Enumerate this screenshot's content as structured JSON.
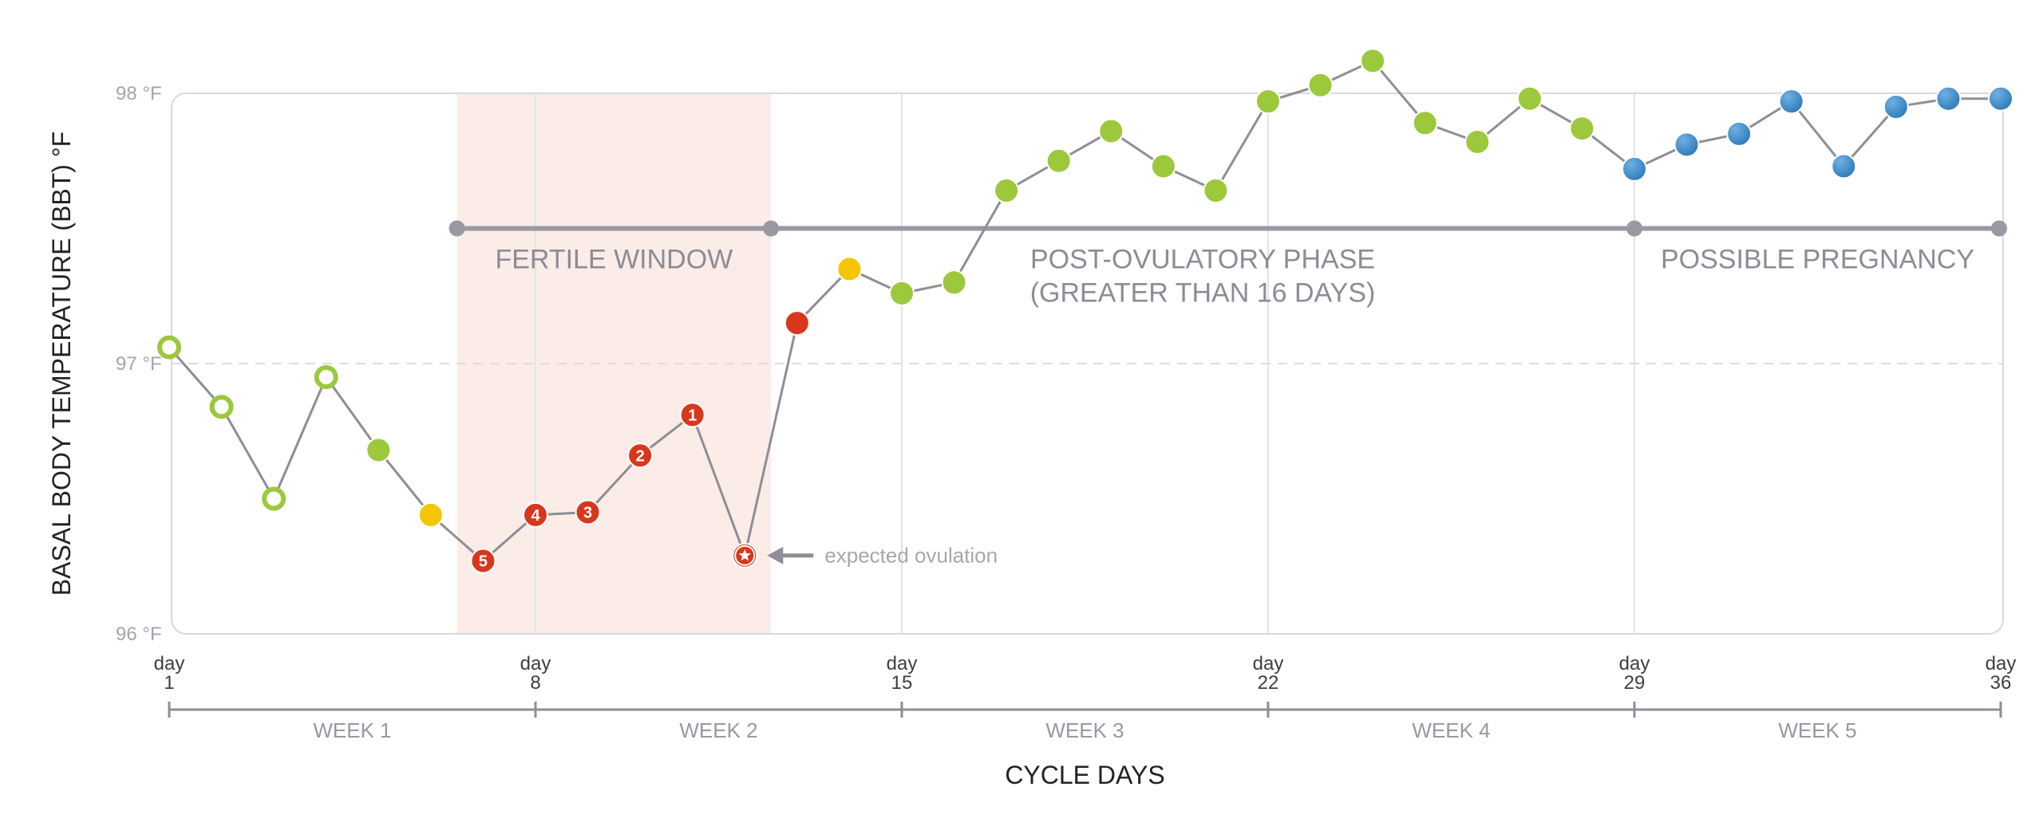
{
  "chart_data": {
    "type": "line",
    "xlabel": "CYCLE DAYS",
    "ylabel": "BASAL BODY TEMPERATURE (BBT) °F",
    "xlim": [
      1,
      36
    ],
    "ylim": [
      96,
      98
    ],
    "grid": {
      "horizontal_dashed_at": [
        97
      ],
      "vertical_at_days": [
        8,
        15,
        22,
        29
      ]
    },
    "y_ticks": [
      {
        "value": 98,
        "label": "98 °F"
      },
      {
        "value": 97,
        "label": "97 °F"
      },
      {
        "value": 96,
        "label": "96 °F"
      }
    ],
    "x_ticks": [
      {
        "day": 1,
        "top": "day",
        "bottom": "1"
      },
      {
        "day": 8,
        "top": "day",
        "bottom": "8"
      },
      {
        "day": 15,
        "top": "day",
        "bottom": "15"
      },
      {
        "day": 22,
        "top": "day",
        "bottom": "22"
      },
      {
        "day": 29,
        "top": "day",
        "bottom": "29"
      },
      {
        "day": 36,
        "top": "day",
        "bottom": "36"
      }
    ],
    "weeks": [
      {
        "label": "WEEK 1",
        "start": 1,
        "end": 8
      },
      {
        "label": "WEEK 2",
        "start": 8,
        "end": 15
      },
      {
        "label": "WEEK 3",
        "start": 15,
        "end": 22
      },
      {
        "label": "WEEK 4",
        "start": 22,
        "end": 29
      },
      {
        "label": "WEEK 5",
        "start": 29,
        "end": 36
      }
    ],
    "fertile_window": {
      "start": 6.5,
      "end": 12.5
    },
    "phases": [
      {
        "lines": [
          "FERTILE WINDOW"
        ],
        "start": 6.5,
        "end": 12.5
      },
      {
        "lines": [
          "POST-OVULATORY PHASE",
          "(GREATER THAN 16 DAYS)"
        ],
        "start": 12.5,
        "end": 29
      },
      {
        "lines": [
          "POSSIBLE PREGNANCY"
        ],
        "start": 29,
        "end": 36
      }
    ],
    "phase_bar_value": 97.5,
    "annotation": {
      "text": "expected ovulation",
      "day": 12
    },
    "colors": {
      "green": "#9cc83c",
      "yellow": "#f5c500",
      "red": "#d8371c",
      "blue": "#2c79b8",
      "line": "#8f8d96",
      "phase_bar": "#9a98a3",
      "fertile_band": "#fbece8",
      "frame": "#d9d8de"
    },
    "series": [
      {
        "points": [
          {
            "day": 1,
            "temp": 97.06,
            "kind": "green-open"
          },
          {
            "day": 2,
            "temp": 96.84,
            "kind": "green-open"
          },
          {
            "day": 3,
            "temp": 96.5,
            "kind": "green-open"
          },
          {
            "day": 4,
            "temp": 96.95,
            "kind": "green-open"
          },
          {
            "day": 5,
            "temp": 96.68,
            "kind": "green"
          },
          {
            "day": 6,
            "temp": 96.44,
            "kind": "yellow"
          },
          {
            "day": 7,
            "temp": 96.27,
            "kind": "red",
            "badge": "5"
          },
          {
            "day": 8,
            "temp": 96.44,
            "kind": "red",
            "badge": "4"
          },
          {
            "day": 9,
            "temp": 96.45,
            "kind": "red",
            "badge": "3"
          },
          {
            "day": 10,
            "temp": 96.66,
            "kind": "red",
            "badge": "2"
          },
          {
            "day": 11,
            "temp": 96.81,
            "kind": "red",
            "badge": "1"
          },
          {
            "day": 12,
            "temp": 96.29,
            "kind": "red-star"
          },
          {
            "day": 13,
            "temp": 97.15,
            "kind": "red"
          },
          {
            "day": 14,
            "temp": 97.35,
            "kind": "yellow"
          },
          {
            "day": 15,
            "temp": 97.26,
            "kind": "green"
          },
          {
            "day": 16,
            "temp": 97.3,
            "kind": "green"
          },
          {
            "day": 17,
            "temp": 97.64,
            "kind": "green"
          },
          {
            "day": 18,
            "temp": 97.75,
            "kind": "green"
          },
          {
            "day": 19,
            "temp": 97.86,
            "kind": "green"
          },
          {
            "day": 20,
            "temp": 97.73,
            "kind": "green"
          },
          {
            "day": 21,
            "temp": 97.64,
            "kind": "green"
          },
          {
            "day": 22,
            "temp": 97.97,
            "kind": "green"
          },
          {
            "day": 23,
            "temp": 98.03,
            "kind": "green"
          },
          {
            "day": 24,
            "temp": 98.12,
            "kind": "green"
          },
          {
            "day": 25,
            "temp": 97.89,
            "kind": "green"
          },
          {
            "day": 26,
            "temp": 97.82,
            "kind": "green"
          },
          {
            "day": 27,
            "temp": 97.98,
            "kind": "green"
          },
          {
            "day": 28,
            "temp": 97.87,
            "kind": "green"
          },
          {
            "day": 29,
            "temp": 97.72,
            "kind": "blue"
          },
          {
            "day": 30,
            "temp": 97.81,
            "kind": "blue"
          },
          {
            "day": 31,
            "temp": 97.85,
            "kind": "blue"
          },
          {
            "day": 32,
            "temp": 97.97,
            "kind": "blue"
          },
          {
            "day": 33,
            "temp": 97.73,
            "kind": "blue"
          },
          {
            "day": 34,
            "temp": 97.95,
            "kind": "blue"
          },
          {
            "day": 35,
            "temp": 97.98,
            "kind": "blue"
          },
          {
            "day": 36,
            "temp": 97.98,
            "kind": "blue"
          }
        ]
      }
    ]
  }
}
